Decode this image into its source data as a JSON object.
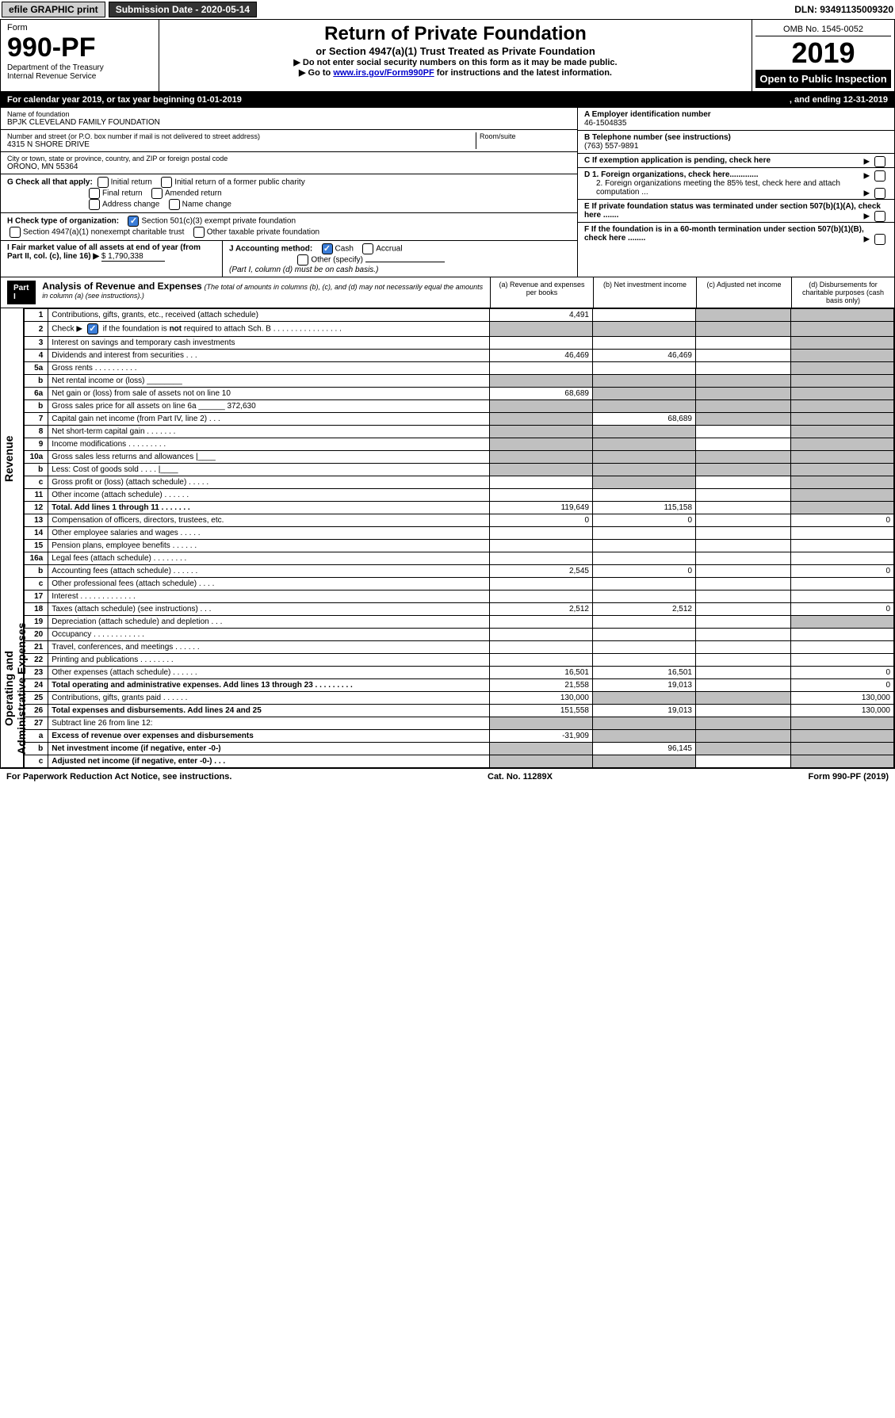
{
  "topbar": {
    "efile": "efile GRAPHIC print",
    "submission": "Submission Date - 2020-05-14",
    "dln": "DLN: 93491135009320"
  },
  "header": {
    "form_label": "Form",
    "form_num": "990-PF",
    "dept": "Department of the Treasury",
    "irs": "Internal Revenue Service",
    "title": "Return of Private Foundation",
    "subtitle": "or Section 4947(a)(1) Trust Treated as Private Foundation",
    "note1": "▶ Do not enter social security numbers on this form as it may be made public.",
    "note2_pre": "▶ Go to ",
    "note2_link": "www.irs.gov/Form990PF",
    "note2_post": " for instructions and the latest information.",
    "omb": "OMB No. 1545-0052",
    "year": "2019",
    "open": "Open to Public Inspection"
  },
  "calyear": {
    "left": "For calendar year 2019, or tax year beginning 01-01-2019",
    "right": ", and ending 12-31-2019"
  },
  "entity": {
    "name_label": "Name of foundation",
    "name": "BPJK CLEVELAND FAMILY FOUNDATION",
    "addr_label": "Number and street (or P.O. box number if mail is not delivered to street address)",
    "addr": "4315 N SHORE DRIVE",
    "room_label": "Room/suite",
    "city_label": "City or town, state or province, country, and ZIP or foreign postal code",
    "city": "ORONO, MN  55364",
    "ein_label": "A Employer identification number",
    "ein": "46-1504835",
    "tel_label": "B Telephone number (see instructions)",
    "tel": "(763) 557-9891",
    "c_label": "C If exemption application is pending, check here",
    "d1": "D 1. Foreign organizations, check here.............",
    "d2": "2. Foreign organizations meeting the 85% test, check here and attach computation ...",
    "e": "E  If private foundation status was terminated under section 507(b)(1)(A), check here .......",
    "f": "F  If the foundation is in a 60-month termination under section 507(b)(1)(B), check here ........"
  },
  "g": {
    "label": "G Check all that apply:",
    "opts": [
      "Initial return",
      "Initial return of a former public charity",
      "Final return",
      "Amended return",
      "Address change",
      "Name change"
    ]
  },
  "h": {
    "label": "H Check type of organization:",
    "opt1": "Section 501(c)(3) exempt private foundation",
    "opt2": "Section 4947(a)(1) nonexempt charitable trust",
    "opt3": "Other taxable private foundation"
  },
  "i": {
    "label": "I Fair market value of all assets at end of year (from Part II, col. (c), line 16) ▶",
    "val": "$  1,790,338"
  },
  "j": {
    "label": "J Accounting method:",
    "cash": "Cash",
    "accrual": "Accrual",
    "other": "Other (specify)",
    "note": "(Part I, column (d) must be on cash basis.)"
  },
  "part1": {
    "heading": "Part I",
    "title": "Analysis of Revenue and Expenses",
    "subtitle": "(The total of amounts in columns (b), (c), and (d) may not necessarily equal the amounts in column (a) (see instructions).)",
    "col_a": "(a)   Revenue and expenses per books",
    "col_b": "(b)  Net investment income",
    "col_c": "(c)  Adjusted net income",
    "col_d": "(d)  Disbursements for charitable purposes (cash basis only)"
  },
  "sidelabels": {
    "revenue": "Revenue",
    "opex": "Operating and Administrative Expenses"
  },
  "rows": [
    {
      "n": "1",
      "label": "Contributions, gifts, grants, etc., received (attach schedule)",
      "a": "4,491",
      "b": "",
      "c": "gray",
      "d": "gray"
    },
    {
      "n": "2",
      "label": "Check ▶ [✓] if the foundation is not required to attach Sch. B   .  .  .  .  .  .  .  .  .  .  .  .  .  .  .  .",
      "a": "gray",
      "b": "gray",
      "c": "gray",
      "d": "gray",
      "checked": true
    },
    {
      "n": "3",
      "label": "Interest on savings and temporary cash investments",
      "a": "",
      "b": "",
      "c": "",
      "d": "gray"
    },
    {
      "n": "4",
      "label": "Dividends and interest from securities    .    .    .",
      "a": "46,469",
      "b": "46,469",
      "c": "",
      "d": "gray"
    },
    {
      "n": "5a",
      "label": "Gross rents   .    .    .    .    .    .    .    .    .    .",
      "a": "",
      "b": "",
      "c": "",
      "d": "gray"
    },
    {
      "n": "b",
      "label": "Net rental income or (loss)  ________",
      "a": "gray",
      "b": "gray",
      "c": "gray",
      "d": "gray"
    },
    {
      "n": "6a",
      "label": "Net gain or (loss) from sale of assets not on line 10",
      "a": "68,689",
      "b": "gray",
      "c": "gray",
      "d": "gray"
    },
    {
      "n": "b",
      "label": "Gross sales price for all assets on line 6a ______ 372,630",
      "a": "gray",
      "b": "gray",
      "c": "gray",
      "d": "gray"
    },
    {
      "n": "7",
      "label": "Capital gain net income (from Part IV, line 2)    .    .    .",
      "a": "gray",
      "b": "68,689",
      "c": "gray",
      "d": "gray"
    },
    {
      "n": "8",
      "label": "Net short-term capital gain   .    .    .    .    .    .    .",
      "a": "gray",
      "b": "gray",
      "c": "",
      "d": "gray"
    },
    {
      "n": "9",
      "label": "Income modifications   .    .    .    .    .    .    .    .    .",
      "a": "gray",
      "b": "gray",
      "c": "",
      "d": "gray"
    },
    {
      "n": "10a",
      "label": "Gross sales less returns and allowances  |____",
      "a": "gray",
      "b": "gray",
      "c": "gray",
      "d": "gray"
    },
    {
      "n": "b",
      "label": "Less: Cost of goods sold     .    .    .    .  |____",
      "a": "gray",
      "b": "gray",
      "c": "gray",
      "d": "gray"
    },
    {
      "n": "c",
      "label": "Gross profit or (loss) (attach schedule)    .    .    .    .    .",
      "a": "",
      "b": "gray",
      "c": "",
      "d": "gray"
    },
    {
      "n": "11",
      "label": "Other income (attach schedule)    .    .    .    .    .    .",
      "a": "",
      "b": "",
      "c": "",
      "d": "gray"
    },
    {
      "n": "12",
      "label": "Total. Add lines 1 through 11    .    .    .    .    .    .    .",
      "a": "119,649",
      "b": "115,158",
      "c": "",
      "d": "gray",
      "bold": true
    },
    {
      "n": "13",
      "label": "Compensation of officers, directors, trustees, etc.",
      "a": "0",
      "b": "0",
      "c": "",
      "d": "0"
    },
    {
      "n": "14",
      "label": "Other employee salaries and wages    .    .    .    .    .",
      "a": "",
      "b": "",
      "c": "",
      "d": ""
    },
    {
      "n": "15",
      "label": "Pension plans, employee benefits   .    .    .    .    .    .",
      "a": "",
      "b": "",
      "c": "",
      "d": ""
    },
    {
      "n": "16a",
      "label": "Legal fees (attach schedule)   .    .    .    .    .    .    .    .",
      "a": "",
      "b": "",
      "c": "",
      "d": ""
    },
    {
      "n": "b",
      "label": "Accounting fees (attach schedule)   .    .    .    .    .    .",
      "a": "2,545",
      "b": "0",
      "c": "",
      "d": "0"
    },
    {
      "n": "c",
      "label": "Other professional fees (attach schedule)    .    .    .    .",
      "a": "",
      "b": "",
      "c": "",
      "d": ""
    },
    {
      "n": "17",
      "label": "Interest   .    .    .    .    .    .    .    .    .    .    .    .    .",
      "a": "",
      "b": "",
      "c": "",
      "d": ""
    },
    {
      "n": "18",
      "label": "Taxes (attach schedule) (see instructions)    .    .    .",
      "a": "2,512",
      "b": "2,512",
      "c": "",
      "d": "0"
    },
    {
      "n": "19",
      "label": "Depreciation (attach schedule) and depletion    .    .    .",
      "a": "",
      "b": "",
      "c": "",
      "d": "gray"
    },
    {
      "n": "20",
      "label": "Occupancy   .    .    .    .    .    .    .    .    .    .    .    .",
      "a": "",
      "b": "",
      "c": "",
      "d": ""
    },
    {
      "n": "21",
      "label": "Travel, conferences, and meetings   .    .    .    .    .    .",
      "a": "",
      "b": "",
      "c": "",
      "d": ""
    },
    {
      "n": "22",
      "label": "Printing and publications   .    .    .    .    .    .    .    .",
      "a": "",
      "b": "",
      "c": "",
      "d": ""
    },
    {
      "n": "23",
      "label": "Other expenses (attach schedule)   .    .    .    .    .    .",
      "a": "16,501",
      "b": "16,501",
      "c": "",
      "d": "0"
    },
    {
      "n": "24",
      "label": "Total operating and administrative expenses. Add lines 13 through 23   .    .    .    .    .    .    .    .    .",
      "a": "21,558",
      "b": "19,013",
      "c": "",
      "d": "0",
      "bold": true
    },
    {
      "n": "25",
      "label": "Contributions, gifts, grants paid    .    .    .    .    .    .",
      "a": "130,000",
      "b": "gray",
      "c": "gray",
      "d": "130,000"
    },
    {
      "n": "26",
      "label": "Total expenses and disbursements. Add lines 24 and 25",
      "a": "151,558",
      "b": "19,013",
      "c": "",
      "d": "130,000",
      "bold": true
    },
    {
      "n": "27",
      "label": "Subtract line 26 from line 12:",
      "a": "gray",
      "b": "gray",
      "c": "gray",
      "d": "gray"
    },
    {
      "n": "a",
      "label": "Excess of revenue over expenses and disbursements",
      "a": "-31,909",
      "b": "gray",
      "c": "gray",
      "d": "gray",
      "bold": true
    },
    {
      "n": "b",
      "label": "Net investment income (if negative, enter -0-)",
      "a": "gray",
      "b": "96,145",
      "c": "gray",
      "d": "gray",
      "bold": true
    },
    {
      "n": "c",
      "label": "Adjusted net income (if negative, enter -0-)    .    .    .",
      "a": "gray",
      "b": "gray",
      "c": "",
      "d": "gray",
      "bold": true
    }
  ],
  "footer": {
    "left": "For Paperwork Reduction Act Notice, see instructions.",
    "center": "Cat. No. 11289X",
    "right": "Form 990-PF (2019)"
  }
}
